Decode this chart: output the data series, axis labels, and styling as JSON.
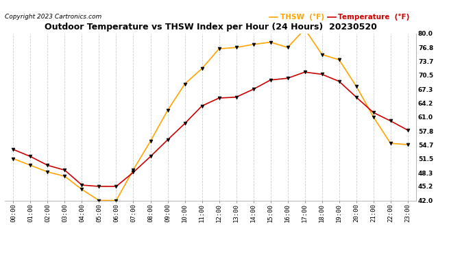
{
  "title": "Outdoor Temperature vs THSW Index per Hour (24 Hours)  20230520",
  "copyright": "Copyright 2023 Cartronics.com",
  "legend_thsw": "THSW  (°F)",
  "legend_temp": "Temperature  (°F)",
  "hours": [
    "00:00",
    "01:00",
    "02:00",
    "03:00",
    "04:00",
    "05:00",
    "06:00",
    "07:00",
    "08:00",
    "09:00",
    "10:00",
    "11:00",
    "12:00",
    "13:00",
    "14:00",
    "15:00",
    "16:00",
    "17:00",
    "18:00",
    "19:00",
    "20:00",
    "21:00",
    "22:00",
    "23:00"
  ],
  "temperature": [
    53.6,
    52.0,
    50.0,
    48.9,
    45.5,
    45.2,
    45.2,
    48.4,
    52.0,
    55.8,
    59.5,
    63.5,
    65.3,
    65.5,
    67.3,
    69.4,
    69.8,
    71.2,
    70.7,
    69.1,
    65.5,
    62.0,
    60.1,
    58.0
  ],
  "thsw": [
    51.5,
    50.0,
    48.5,
    47.5,
    44.5,
    42.0,
    42.0,
    49.0,
    55.5,
    62.5,
    68.5,
    72.0,
    76.5,
    76.8,
    77.5,
    78.0,
    76.8,
    81.0,
    75.2,
    74.0,
    68.0,
    61.0,
    55.0,
    54.7
  ],
  "thsw_color": "#FFA500",
  "temp_color": "#CC0000",
  "marker_color": "#000000",
  "background_color": "#ffffff",
  "grid_color": "#cccccc",
  "title_color": "#000000",
  "copyright_color": "#000000",
  "ylim": [
    42.0,
    80.0
  ],
  "yticks": [
    42.0,
    45.2,
    48.3,
    51.5,
    54.7,
    57.8,
    61.0,
    64.2,
    67.3,
    70.5,
    73.7,
    76.8,
    80.0
  ],
  "title_fontsize": 9,
  "copyright_fontsize": 6.5,
  "legend_fontsize": 7.5,
  "tick_fontsize": 6.5
}
